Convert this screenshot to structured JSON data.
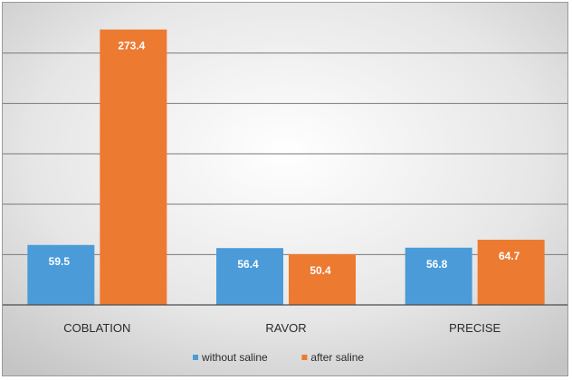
{
  "chart_data": {
    "type": "bar",
    "categories": [
      "COBLATION",
      "RAVOR",
      "PRECISE"
    ],
    "series": [
      {
        "name": "without saline",
        "values": [
          59.5,
          56.4,
          56.8
        ],
        "color": "#4a9bd8"
      },
      {
        "name": "after saline",
        "values": [
          273.4,
          50.4,
          64.7
        ],
        "color": "#ec7a31"
      }
    ],
    "ylim": [
      0,
      300
    ],
    "gridlines": true,
    "legend_position": "bottom",
    "background": "gradient-grey"
  }
}
